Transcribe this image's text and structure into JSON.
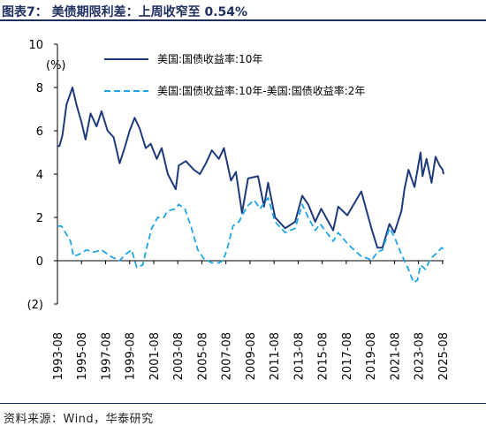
{
  "header": {
    "title": "图表7：  美债期限利差：上周收窄至 0.54%"
  },
  "footer": {
    "source": "资料来源：Wind，华泰研究"
  },
  "chart_data": {
    "type": "line",
    "ylabel": "(%)",
    "ylim": [
      -2,
      10
    ],
    "y_ticks": [
      10,
      8,
      6,
      4,
      2,
      0,
      -2
    ],
    "y_tick_labels": [
      "10",
      "8",
      "6",
      "4",
      "2",
      "0",
      "(2)"
    ],
    "x_range": [
      "1993-08",
      "2025-09"
    ],
    "x_ticks": [
      "1993-08",
      "1995-08",
      "1997-08",
      "1999-08",
      "2001-08",
      "2003-08",
      "2005-08",
      "2007-08",
      "2009-08",
      "2011-08",
      "2013-08",
      "2015-08",
      "2017-08",
      "2019-08",
      "2021-08",
      "2023-08",
      "2025-08"
    ],
    "legend_position": "top-right",
    "colors": {
      "series1": "#1f3a7a",
      "series2": "#1fa5e6",
      "axis": "#000000"
    },
    "series": [
      {
        "name": "美国:国债收益率:10年",
        "style": "solid",
        "points": [
          [
            "1993-08",
            5.3
          ],
          [
            "1993-10",
            5.3
          ],
          [
            "1994-01",
            5.8
          ],
          [
            "1994-05",
            7.2
          ],
          [
            "1994-11",
            8.0
          ],
          [
            "1995-03",
            7.2
          ],
          [
            "1995-08",
            6.4
          ],
          [
            "1995-12",
            5.6
          ],
          [
            "1996-05",
            6.8
          ],
          [
            "1996-11",
            6.2
          ],
          [
            "1997-04",
            6.9
          ],
          [
            "1997-10",
            6.0
          ],
          [
            "1998-04",
            5.7
          ],
          [
            "1998-10",
            4.5
          ],
          [
            "1999-03",
            5.2
          ],
          [
            "1999-08",
            6.0
          ],
          [
            "2000-01",
            6.6
          ],
          [
            "2000-06",
            6.1
          ],
          [
            "2000-12",
            5.2
          ],
          [
            "2001-05",
            5.4
          ],
          [
            "2001-11",
            4.7
          ],
          [
            "2002-04",
            5.2
          ],
          [
            "2002-10",
            4.0
          ],
          [
            "2003-06",
            3.3
          ],
          [
            "2003-09",
            4.4
          ],
          [
            "2004-04",
            4.6
          ],
          [
            "2004-12",
            4.2
          ],
          [
            "2005-06",
            4.0
          ],
          [
            "2005-12",
            4.5
          ],
          [
            "2006-06",
            5.1
          ],
          [
            "2007-01",
            4.7
          ],
          [
            "2007-06",
            5.2
          ],
          [
            "2008-01",
            3.7
          ],
          [
            "2008-06",
            4.1
          ],
          [
            "2008-12",
            2.2
          ],
          [
            "2009-06",
            3.8
          ],
          [
            "2010-04",
            3.9
          ],
          [
            "2010-10",
            2.5
          ],
          [
            "2011-02",
            3.6
          ],
          [
            "2011-09",
            2.0
          ],
          [
            "2012-07",
            1.5
          ],
          [
            "2013-05",
            1.8
          ],
          [
            "2013-12",
            3.0
          ],
          [
            "2014-06",
            2.6
          ],
          [
            "2015-01",
            1.8
          ],
          [
            "2015-07",
            2.4
          ],
          [
            "2016-07",
            1.4
          ],
          [
            "2016-12",
            2.5
          ],
          [
            "2017-09",
            2.1
          ],
          [
            "2018-11",
            3.2
          ],
          [
            "2019-09",
            1.5
          ],
          [
            "2020-03",
            0.6
          ],
          [
            "2020-08",
            0.6
          ],
          [
            "2021-03",
            1.7
          ],
          [
            "2021-08",
            1.3
          ],
          [
            "2022-03",
            2.3
          ],
          [
            "2022-06",
            3.3
          ],
          [
            "2022-10",
            4.2
          ],
          [
            "2023-04",
            3.4
          ],
          [
            "2023-10",
            5.0
          ],
          [
            "2023-12",
            3.9
          ],
          [
            "2024-04",
            4.7
          ],
          [
            "2024-09",
            3.6
          ],
          [
            "2025-01",
            4.8
          ],
          [
            "2025-05",
            4.4
          ],
          [
            "2025-08",
            4.2
          ],
          [
            "2025-09",
            4.0
          ]
        ]
      },
      {
        "name": "美国:国债收益率:10年-美国:国债收益率:2年",
        "style": "dashed",
        "points": [
          [
            "1993-08",
            1.6
          ],
          [
            "1993-12",
            1.6
          ],
          [
            "1994-04",
            1.3
          ],
          [
            "1994-09",
            0.9
          ],
          [
            "1994-12",
            0.2
          ],
          [
            "1995-06",
            0.3
          ],
          [
            "1996-01",
            0.5
          ],
          [
            "1996-08",
            0.4
          ],
          [
            "1997-04",
            0.5
          ],
          [
            "1998-01",
            0.2
          ],
          [
            "1998-10",
            0.0
          ],
          [
            "1999-04",
            0.3
          ],
          [
            "1999-10",
            0.5
          ],
          [
            "2000-03",
            -0.3
          ],
          [
            "2000-09",
            -0.2
          ],
          [
            "2001-01",
            0.6
          ],
          [
            "2001-06",
            1.5
          ],
          [
            "2001-12",
            2.0
          ],
          [
            "2002-06",
            2.0
          ],
          [
            "2002-10",
            2.3
          ],
          [
            "2003-06",
            2.4
          ],
          [
            "2003-09",
            2.6
          ],
          [
            "2004-03",
            2.4
          ],
          [
            "2004-09",
            1.6
          ],
          [
            "2005-04",
            0.5
          ],
          [
            "2005-10",
            0.1
          ],
          [
            "2006-06",
            -0.1
          ],
          [
            "2007-01",
            -0.1
          ],
          [
            "2007-05",
            0.0
          ],
          [
            "2007-09",
            0.5
          ],
          [
            "2008-03",
            1.6
          ],
          [
            "2008-09",
            1.8
          ],
          [
            "2009-05",
            2.5
          ],
          [
            "2009-12",
            2.8
          ],
          [
            "2010-06",
            2.4
          ],
          [
            "2011-02",
            2.9
          ],
          [
            "2011-09",
            1.8
          ],
          [
            "2012-07",
            1.3
          ],
          [
            "2013-05",
            1.5
          ],
          [
            "2013-12",
            2.6
          ],
          [
            "2014-06",
            2.0
          ],
          [
            "2015-01",
            1.4
          ],
          [
            "2015-06",
            1.7
          ],
          [
            "2016-07",
            0.9
          ],
          [
            "2016-12",
            1.3
          ],
          [
            "2017-09",
            0.8
          ],
          [
            "2018-06",
            0.4
          ],
          [
            "2018-11",
            0.2
          ],
          [
            "2019-06",
            0.1
          ],
          [
            "2019-09",
            0.0
          ],
          [
            "2020-03",
            0.4
          ],
          [
            "2020-08",
            0.5
          ],
          [
            "2021-03",
            1.5
          ],
          [
            "2021-08",
            1.1
          ],
          [
            "2022-02",
            0.4
          ],
          [
            "2022-06",
            0.0
          ],
          [
            "2022-10",
            -0.4
          ],
          [
            "2023-03",
            -1.0
          ],
          [
            "2023-07",
            -0.9
          ],
          [
            "2023-10",
            -0.2
          ],
          [
            "2024-03",
            -0.4
          ],
          [
            "2024-08",
            0.1
          ],
          [
            "2025-01",
            0.3
          ],
          [
            "2025-05",
            0.5
          ],
          [
            "2025-07",
            0.6
          ],
          [
            "2025-09",
            0.54
          ]
        ]
      }
    ]
  }
}
